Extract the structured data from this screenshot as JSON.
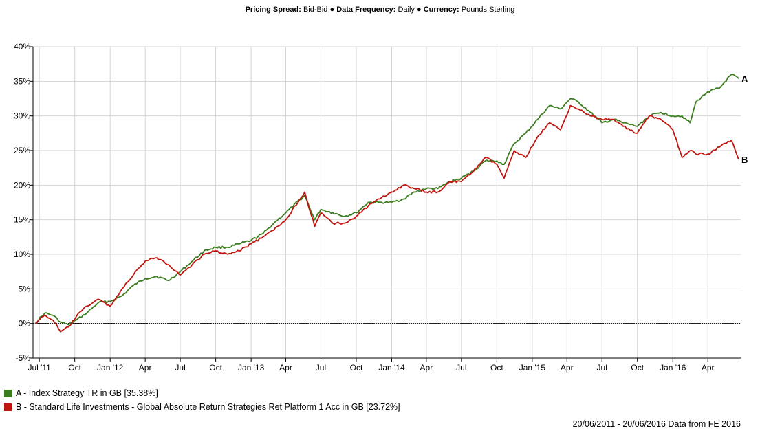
{
  "header": {
    "spread_label": "Pricing Spread:",
    "spread_value": "Bid-Bid",
    "frequency_label": "Data Frequency:",
    "frequency_value": "Daily",
    "currency_label": "Currency:",
    "currency_value": "Pounds Sterling",
    "separator": "●"
  },
  "chart_data": {
    "type": "line",
    "ylim": [
      -5,
      40
    ],
    "y_unit": "%",
    "grid": true,
    "yticks": [
      -5,
      0,
      5,
      10,
      15,
      20,
      25,
      30,
      35,
      40
    ],
    "ytick_labels": [
      "-5%",
      "0%",
      "5%",
      "10%",
      "15%",
      "20%",
      "25%",
      "30%",
      "35%",
      "40%"
    ],
    "xtick_labels": [
      "Jul '11",
      "Oct",
      "Jan '12",
      "Apr",
      "Jul",
      "Oct",
      "Jan '13",
      "Apr",
      "Jul",
      "Oct",
      "Jan '14",
      "Apr",
      "Jul",
      "Oct",
      "Jan '15",
      "Apr",
      "Jul",
      "Oct",
      "Jan '16",
      "Apr"
    ],
    "x": [
      "2011-06-20",
      "2011-07-15",
      "2011-08-05",
      "2011-08-25",
      "2011-09-15",
      "2011-10-05",
      "2011-11-01",
      "2011-12-01",
      "2012-01-01",
      "2012-02-01",
      "2012-03-01",
      "2012-04-01",
      "2012-05-01",
      "2012-06-01",
      "2012-07-01",
      "2012-08-01",
      "2012-09-01",
      "2012-10-01",
      "2012-11-01",
      "2012-12-01",
      "2013-01-01",
      "2013-02-01",
      "2013-03-01",
      "2013-04-01",
      "2013-05-20",
      "2013-06-15",
      "2013-07-01",
      "2013-08-01",
      "2013-09-01",
      "2013-10-01",
      "2013-11-01",
      "2013-12-01",
      "2014-01-01",
      "2014-02-01",
      "2014-03-01",
      "2014-04-01",
      "2014-05-01",
      "2014-06-01",
      "2014-07-01",
      "2014-08-01",
      "2014-09-01",
      "2014-10-01",
      "2014-10-20",
      "2014-11-15",
      "2014-12-15",
      "2015-01-15",
      "2015-02-15",
      "2015-03-15",
      "2015-04-10",
      "2015-05-01",
      "2015-06-01",
      "2015-07-01",
      "2015-08-01",
      "2015-08-25",
      "2015-10-01",
      "2015-11-01",
      "2015-12-01",
      "2016-01-01",
      "2016-01-25",
      "2016-02-15",
      "2016-03-01",
      "2016-04-01",
      "2016-05-01",
      "2016-06-01",
      "2016-06-20"
    ],
    "series": [
      {
        "label": "A",
        "color": "#3a7d1e",
        "values": [
          0,
          1.5,
          1.2,
          0.2,
          -0.2,
          0.5,
          1.5,
          3.0,
          3.2,
          4.0,
          5.5,
          6.5,
          6.8,
          6.2,
          7.5,
          9.0,
          10.5,
          11.0,
          11.0,
          11.5,
          12.0,
          13.0,
          14.5,
          16.0,
          18.5,
          15.0,
          16.5,
          16.0,
          15.5,
          16.0,
          17.5,
          17.5,
          17.5,
          18.0,
          19.0,
          19.5,
          19.5,
          20.5,
          21.0,
          22.0,
          23.5,
          23.5,
          23.0,
          26.0,
          27.5,
          29.5,
          31.5,
          31.0,
          32.5,
          32.0,
          30.5,
          29.0,
          29.5,
          29.0,
          28.5,
          30.0,
          30.5,
          30.0,
          30.0,
          29.0,
          32.0,
          33.5,
          34.0,
          36.0,
          35.4
        ]
      },
      {
        "label": "B",
        "color": "#c0140f",
        "values": [
          0,
          1.2,
          0.5,
          -1.2,
          -0.5,
          1.0,
          2.5,
          3.5,
          2.5,
          5.0,
          7.0,
          9.0,
          9.5,
          8.5,
          7.0,
          8.5,
          10.0,
          10.5,
          10.0,
          10.5,
          11.5,
          12.5,
          13.5,
          15.0,
          19.0,
          14.0,
          16.0,
          14.5,
          14.5,
          15.5,
          17.0,
          18.0,
          19.0,
          20.0,
          19.5,
          19.0,
          19.0,
          20.5,
          20.5,
          22.0,
          24.0,
          23.0,
          21.0,
          25.0,
          24.0,
          27.0,
          29.0,
          28.0,
          31.5,
          31.0,
          30.0,
          29.5,
          29.5,
          28.5,
          27.5,
          30.0,
          29.5,
          28.0,
          24.0,
          25.0,
          24.5,
          24.5,
          25.5,
          26.5,
          23.7
        ]
      }
    ]
  },
  "legend": [
    {
      "text": "A - Index Strategy TR in GB [35.38%]",
      "color": "#3a7d1e"
    },
    {
      "text": "B - Standard Life Investments - Global Absolute Return Strategies Ret Platform 1 Acc in GB [23.72%]",
      "color": "#c0140f"
    }
  ],
  "footer": "20/06/2011 - 20/06/2016 Data from FE 2016"
}
